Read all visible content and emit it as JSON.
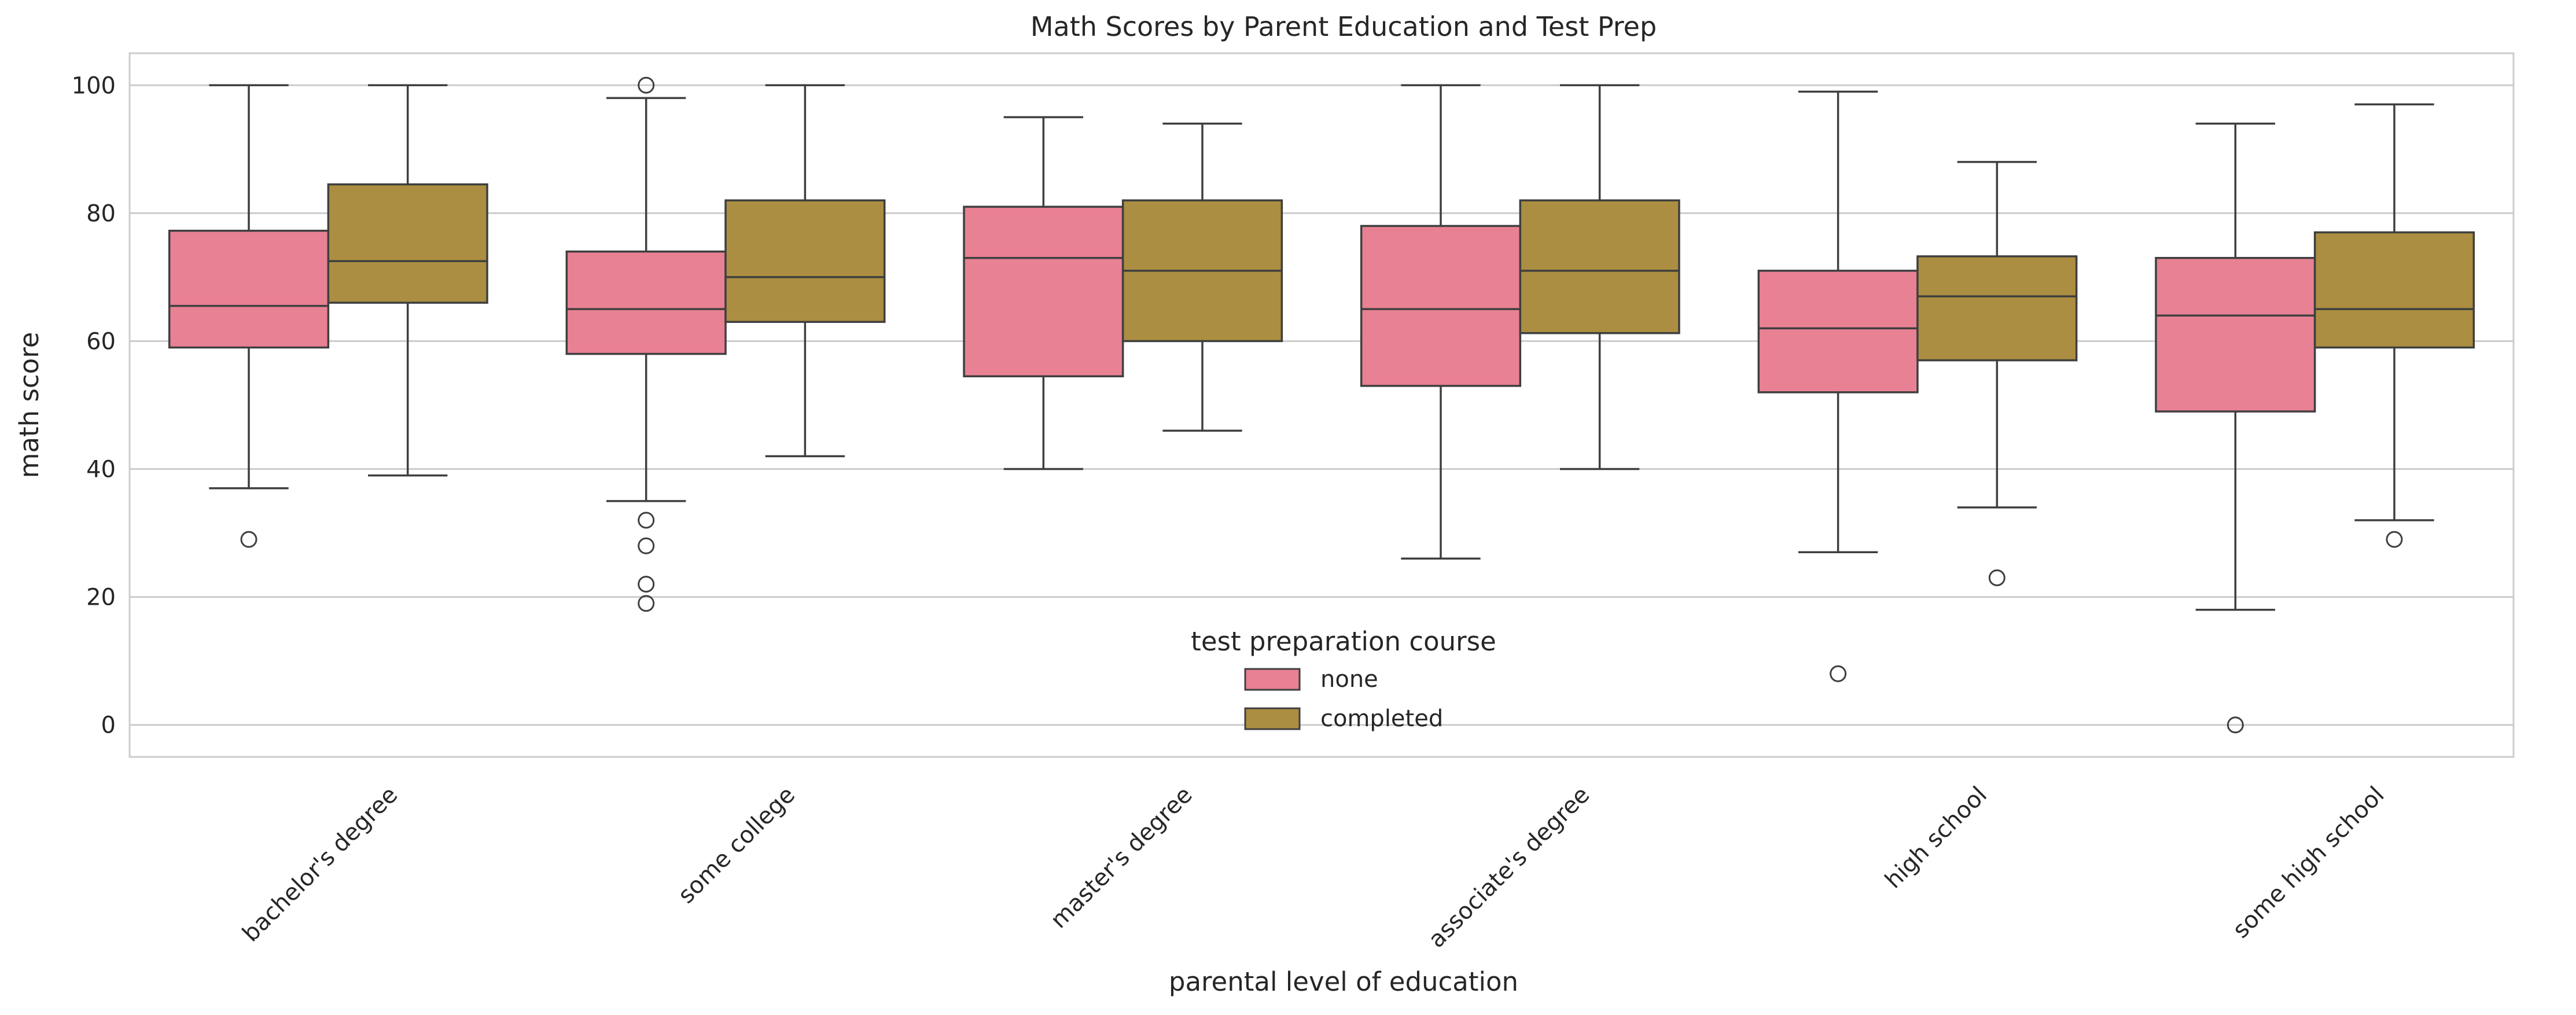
{
  "chart_data": {
    "type": "box",
    "title": "Math Scores by Parent Education and Test Prep",
    "xlabel": "parental level of education",
    "ylabel": "math score",
    "ylim": [
      -5,
      105
    ],
    "yticks": [
      0,
      20,
      40,
      60,
      80,
      100
    ],
    "grid": "horizontal",
    "categories": [
      "bachelor's degree",
      "some college",
      "master's degree",
      "associate's degree",
      "high school",
      "some high school"
    ],
    "legend": {
      "title": "test preparation course",
      "placement": "lower-center",
      "entries": [
        "none",
        "completed"
      ]
    },
    "series": [
      {
        "name": "none",
        "color": "#e88193",
        "boxes": [
          {
            "whisker_low": 37,
            "q1": 59,
            "median": 65.5,
            "q3": 77.25,
            "whisker_high": 100,
            "outliers": [
              29
            ]
          },
          {
            "whisker_low": 35,
            "q1": 58,
            "median": 65,
            "q3": 74,
            "whisker_high": 98,
            "outliers": [
              100,
              32,
              28,
              22,
              19
            ]
          },
          {
            "whisker_low": 40,
            "q1": 54.5,
            "median": 73,
            "q3": 81,
            "whisker_high": 95,
            "outliers": []
          },
          {
            "whisker_low": 26,
            "q1": 53,
            "median": 65,
            "q3": 78,
            "whisker_high": 100,
            "outliers": []
          },
          {
            "whisker_low": 27,
            "q1": 52,
            "median": 62,
            "q3": 71,
            "whisker_high": 99,
            "outliers": [
              8
            ]
          },
          {
            "whisker_low": 18,
            "q1": 49,
            "median": 64,
            "q3": 73,
            "whisker_high": 94,
            "outliers": [
              0
            ]
          }
        ]
      },
      {
        "name": "completed",
        "color": "#ab8e41",
        "boxes": [
          {
            "whisker_low": 39,
            "q1": 66,
            "median": 72.5,
            "q3": 84.5,
            "whisker_high": 100,
            "outliers": []
          },
          {
            "whisker_low": 42,
            "q1": 63,
            "median": 70,
            "q3": 82,
            "whisker_high": 100,
            "outliers": []
          },
          {
            "whisker_low": 46,
            "q1": 60,
            "median": 71,
            "q3": 82,
            "whisker_high": 94,
            "outliers": []
          },
          {
            "whisker_low": 40,
            "q1": 61.25,
            "median": 71,
            "q3": 82,
            "whisker_high": 100,
            "outliers": []
          },
          {
            "whisker_low": 34,
            "q1": 57,
            "median": 67,
            "q3": 73.25,
            "whisker_high": 88,
            "outliers": [
              23
            ]
          },
          {
            "whisker_low": 32,
            "q1": 59,
            "median": 65,
            "q3": 77,
            "whisker_high": 97,
            "outliers": [
              29
            ]
          }
        ]
      }
    ]
  }
}
